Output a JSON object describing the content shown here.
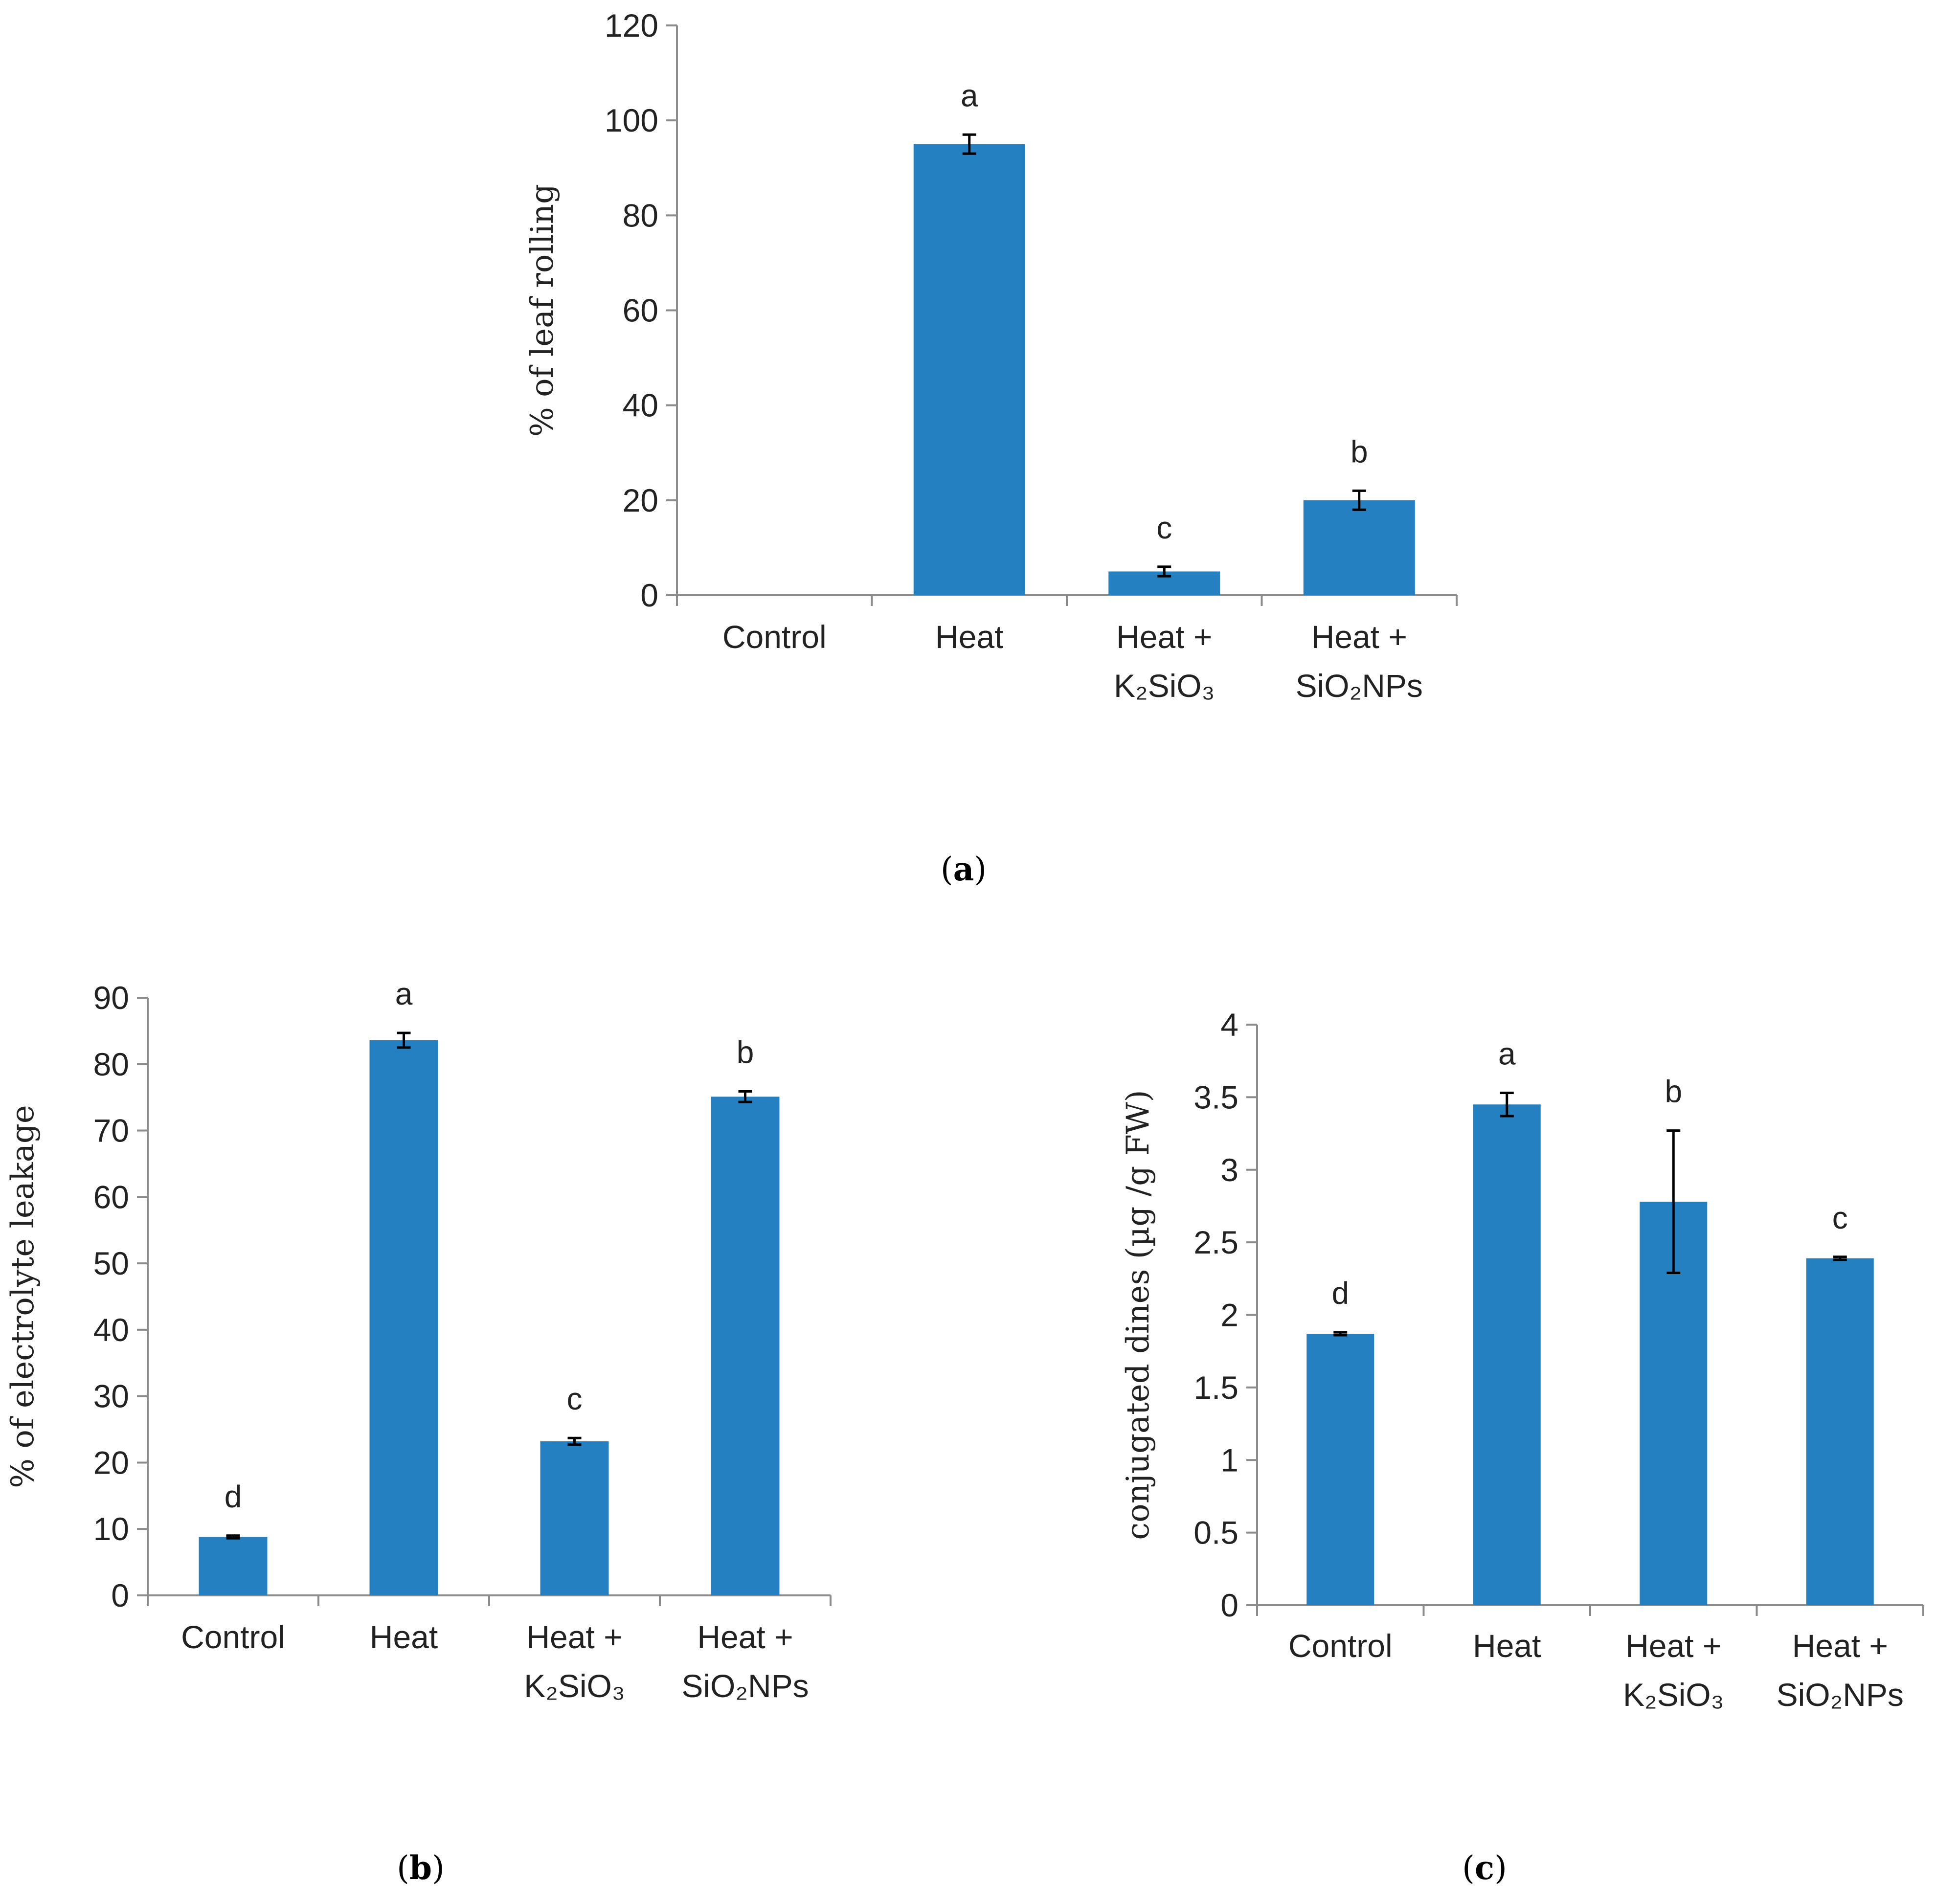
{
  "colors": {
    "bar": "#2580C1",
    "axis": "#8C8C8C",
    "error_bar": "#000000",
    "text": "#222222"
  },
  "chart_data": [
    {
      "panel": "(a)",
      "panel_letter": "a",
      "type": "bar",
      "ylabel": "% of leaf rolling",
      "xlabel": "",
      "ylim": [
        0,
        120
      ],
      "yticks": [
        0,
        20,
        40,
        60,
        80,
        100,
        120
      ],
      "grid": false,
      "categories": [
        {
          "line1": "Control",
          "line2": ""
        },
        {
          "line1": "Heat",
          "line2": ""
        },
        {
          "line1": "Heat +",
          "line2": "K₂SiO₃"
        },
        {
          "line1": "Heat +",
          "line2": "SiO₂NPs"
        }
      ],
      "values": [
        0,
        95,
        5,
        20
      ],
      "errors": [
        0,
        2,
        1,
        2
      ],
      "significance": [
        "",
        "a",
        "c",
        "b"
      ]
    },
    {
      "panel": "(b)",
      "panel_letter": "b",
      "type": "bar",
      "ylabel": "% of electrolyte leakage",
      "xlabel": "",
      "ylim": [
        0,
        90
      ],
      "yticks": [
        0,
        10,
        20,
        30,
        40,
        50,
        60,
        70,
        80,
        90
      ],
      "grid": false,
      "categories": [
        {
          "line1": "Control",
          "line2": ""
        },
        {
          "line1": "Heat",
          "line2": ""
        },
        {
          "line1": "Heat +",
          "line2": "K₂SiO₃"
        },
        {
          "line1": "Heat +",
          "line2": "SiO₂NPs"
        }
      ],
      "values": [
        8.8,
        83.6,
        23.2,
        75.1
      ],
      "errors": [
        0.2,
        1.1,
        0.5,
        0.8
      ],
      "significance": [
        "d",
        "a",
        "c",
        "b"
      ]
    },
    {
      "panel": "(c)",
      "panel_letter": "c",
      "type": "bar",
      "ylabel": "conjugated dines (µg /g FW)",
      "xlabel": "",
      "ylim": [
        0,
        4
      ],
      "yticks": [
        0,
        0.5,
        1,
        1.5,
        2,
        2.5,
        3,
        3.5,
        4
      ],
      "grid": false,
      "categories": [
        {
          "line1": "Control",
          "line2": ""
        },
        {
          "line1": "Heat",
          "line2": ""
        },
        {
          "line1": "Heat +",
          "line2": "K₂SiO₃"
        },
        {
          "line1": "Heat +",
          "line2": "SiO₂NPs"
        }
      ],
      "values": [
        1.87,
        3.45,
        2.78,
        2.39
      ],
      "errors": [
        0.01,
        0.08,
        0.49,
        0.01
      ],
      "significance": [
        "d",
        "a",
        "b",
        "c"
      ]
    }
  ]
}
